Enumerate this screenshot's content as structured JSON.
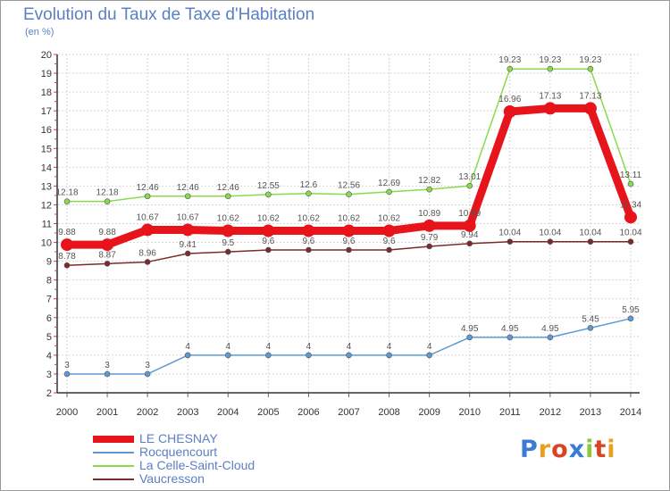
{
  "title": "Evolution du Taux de Taxe d'Habitation",
  "unit_label": "(en %)",
  "brand": {
    "text": "Proxiti",
    "letter_colors": [
      "#3a7bd5",
      "#e9a020",
      "#d94425",
      "#3a7bd5",
      "#8cc63f",
      "#d94425",
      "#e9a020"
    ]
  },
  "chart_data": {
    "type": "line",
    "x": [
      "2000",
      "2001",
      "2002",
      "2003",
      "2004",
      "2005",
      "2006",
      "2007",
      "2008",
      "2009",
      "2010",
      "2011",
      "2012",
      "2013",
      "2014"
    ],
    "ylim": [
      2,
      20
    ],
    "yticks": [
      2,
      3,
      4,
      5,
      6,
      7,
      8,
      9,
      10,
      11,
      12,
      13,
      14,
      15,
      16,
      17,
      18,
      19,
      20
    ],
    "grid": true,
    "legend_position": "bottom-left",
    "series": [
      {
        "name": "LE CHESNAY",
        "color": "#e8141b",
        "emphasis": true,
        "values": [
          9.88,
          9.88,
          10.67,
          10.67,
          10.62,
          10.62,
          10.62,
          10.62,
          10.62,
          10.89,
          10.89,
          16.96,
          17.13,
          17.13,
          11.34
        ],
        "labels": [
          "9.88",
          "9.88",
          "10.67",
          "10.67",
          "10.62",
          "10.62",
          "10.62",
          "10.62",
          "10.62",
          "10.89",
          "10.89",
          "16.96",
          "17.13",
          "17.13",
          "11.34"
        ]
      },
      {
        "name": "Rocquencourt",
        "color": "#5d9ad4",
        "values": [
          3,
          3,
          3,
          4,
          4,
          4,
          4,
          4,
          4,
          4,
          4.95,
          4.95,
          4.95,
          5.45,
          5.95
        ],
        "labels": [
          "3",
          "3",
          "3",
          "4",
          "4",
          "4",
          "4",
          "4",
          "4",
          "4",
          "4.95",
          "4.95",
          "4.95",
          "5.45",
          "5.95"
        ]
      },
      {
        "name": "La Celle-Saint-Cloud",
        "color": "#8bd94f",
        "values": [
          12.18,
          12.18,
          12.46,
          12.46,
          12.46,
          12.55,
          12.6,
          12.56,
          12.69,
          12.82,
          13.01,
          19.23,
          19.23,
          19.23,
          13.11
        ],
        "labels": [
          "12.18",
          "12.18",
          "12.46",
          "12.46",
          "12.46",
          "12.55",
          "12.6",
          "12.56",
          "12.69",
          "12.82",
          "13.01",
          "19.23",
          "19.23",
          "19.23",
          "13.11"
        ]
      },
      {
        "name": "Vaucresson",
        "color": "#7b2b2b",
        "values": [
          8.78,
          8.87,
          8.96,
          9.41,
          9.5,
          9.6,
          9.6,
          9.6,
          9.6,
          9.79,
          9.94,
          10.04,
          10.04,
          10.04,
          10.04
        ],
        "labels": [
          "8.78",
          "8.87",
          "8.96",
          "9.41",
          "9.5",
          "9.6",
          "9.6",
          "9.6",
          "9.6",
          "9.79",
          "9.94",
          "10.04",
          "10.04",
          "10.04",
          "10.04"
        ]
      }
    ]
  }
}
